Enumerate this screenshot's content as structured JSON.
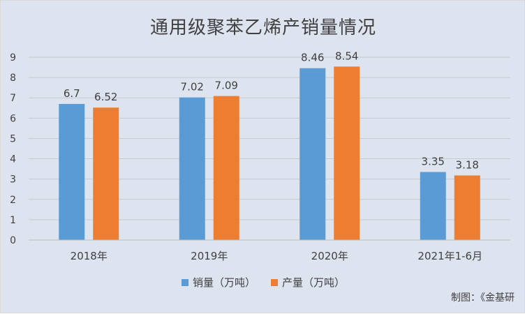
{
  "chart_data": {
    "type": "bar",
    "title": "通用级聚苯乙烯产销量情况",
    "categories": [
      "2018年",
      "2019年",
      "2020年",
      "2021年1-6月"
    ],
    "series": [
      {
        "name": "销量（万吨）",
        "color": "#5b9bd5",
        "values": [
          6.7,
          7.02,
          8.46,
          3.35
        ],
        "labels": [
          "6.7",
          "7.02",
          "8.46",
          "3.35"
        ]
      },
      {
        "name": "产量（万吨）",
        "color": "#ed7d31",
        "values": [
          6.52,
          7.09,
          8.54,
          3.18
        ],
        "labels": [
          "6.52",
          "7.09",
          "8.54",
          "3.18"
        ]
      }
    ],
    "ylim": [
      0,
      9
    ],
    "yticks": [
      "0",
      "1",
      "2",
      "3",
      "4",
      "5",
      "6",
      "7",
      "8",
      "9"
    ],
    "grid": true,
    "legend_position": "bottom",
    "xlabel": "",
    "ylabel": ""
  },
  "source_note": "制图：《金基研"
}
